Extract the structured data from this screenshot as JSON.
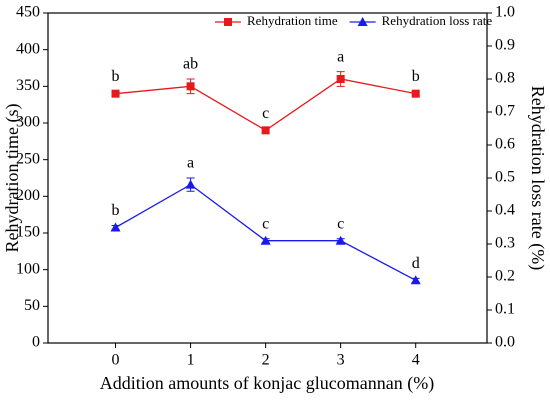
{
  "chart_data": {
    "type": "line",
    "x_label": "Addition amounts of konjac glucomannan (%)",
    "y_label": "Rehydration time (s)",
    "y2_label": "Rehydration loss rate (%)",
    "x": [
      0,
      1,
      2,
      3,
      4
    ],
    "xlim": [
      -0.9,
      4.95
    ],
    "xticks": [
      0,
      1,
      2,
      3,
      4
    ],
    "ylim": [
      0,
      450
    ],
    "yticks": [
      0,
      50,
      100,
      150,
      200,
      250,
      300,
      350,
      400,
      450
    ],
    "y2lim": [
      0,
      1
    ],
    "y2ticks": [
      {
        "value": 0,
        "label": "0.0"
      },
      0.1,
      0.2,
      0.3,
      0.4,
      0.5,
      0.6,
      0.7,
      0.8,
      0.9,
      {
        "value": 1,
        "label": "1.0"
      }
    ],
    "legend": "upper center",
    "series": [
      {
        "name": "Rehydration time",
        "color": "#e8191c",
        "marker": "square",
        "values": [
          340,
          350,
          290,
          360,
          340
        ],
        "errors": [
          3,
          10,
          3,
          10,
          3
        ],
        "letters": [
          "b",
          "ab",
          "c",
          "a",
          "b"
        ]
      },
      {
        "name": "Rehydration loss rate",
        "color": "#1a1aeb",
        "marker": "triangle",
        "axis": "y2",
        "values": [
          0.35,
          0.48,
          0.31,
          0.31,
          0.19
        ],
        "errors": [
          0.006,
          0.02,
          0.006,
          0.006,
          0.006
        ],
        "letters": [
          "b",
          "a",
          "c",
          "c",
          "d"
        ]
      }
    ]
  }
}
